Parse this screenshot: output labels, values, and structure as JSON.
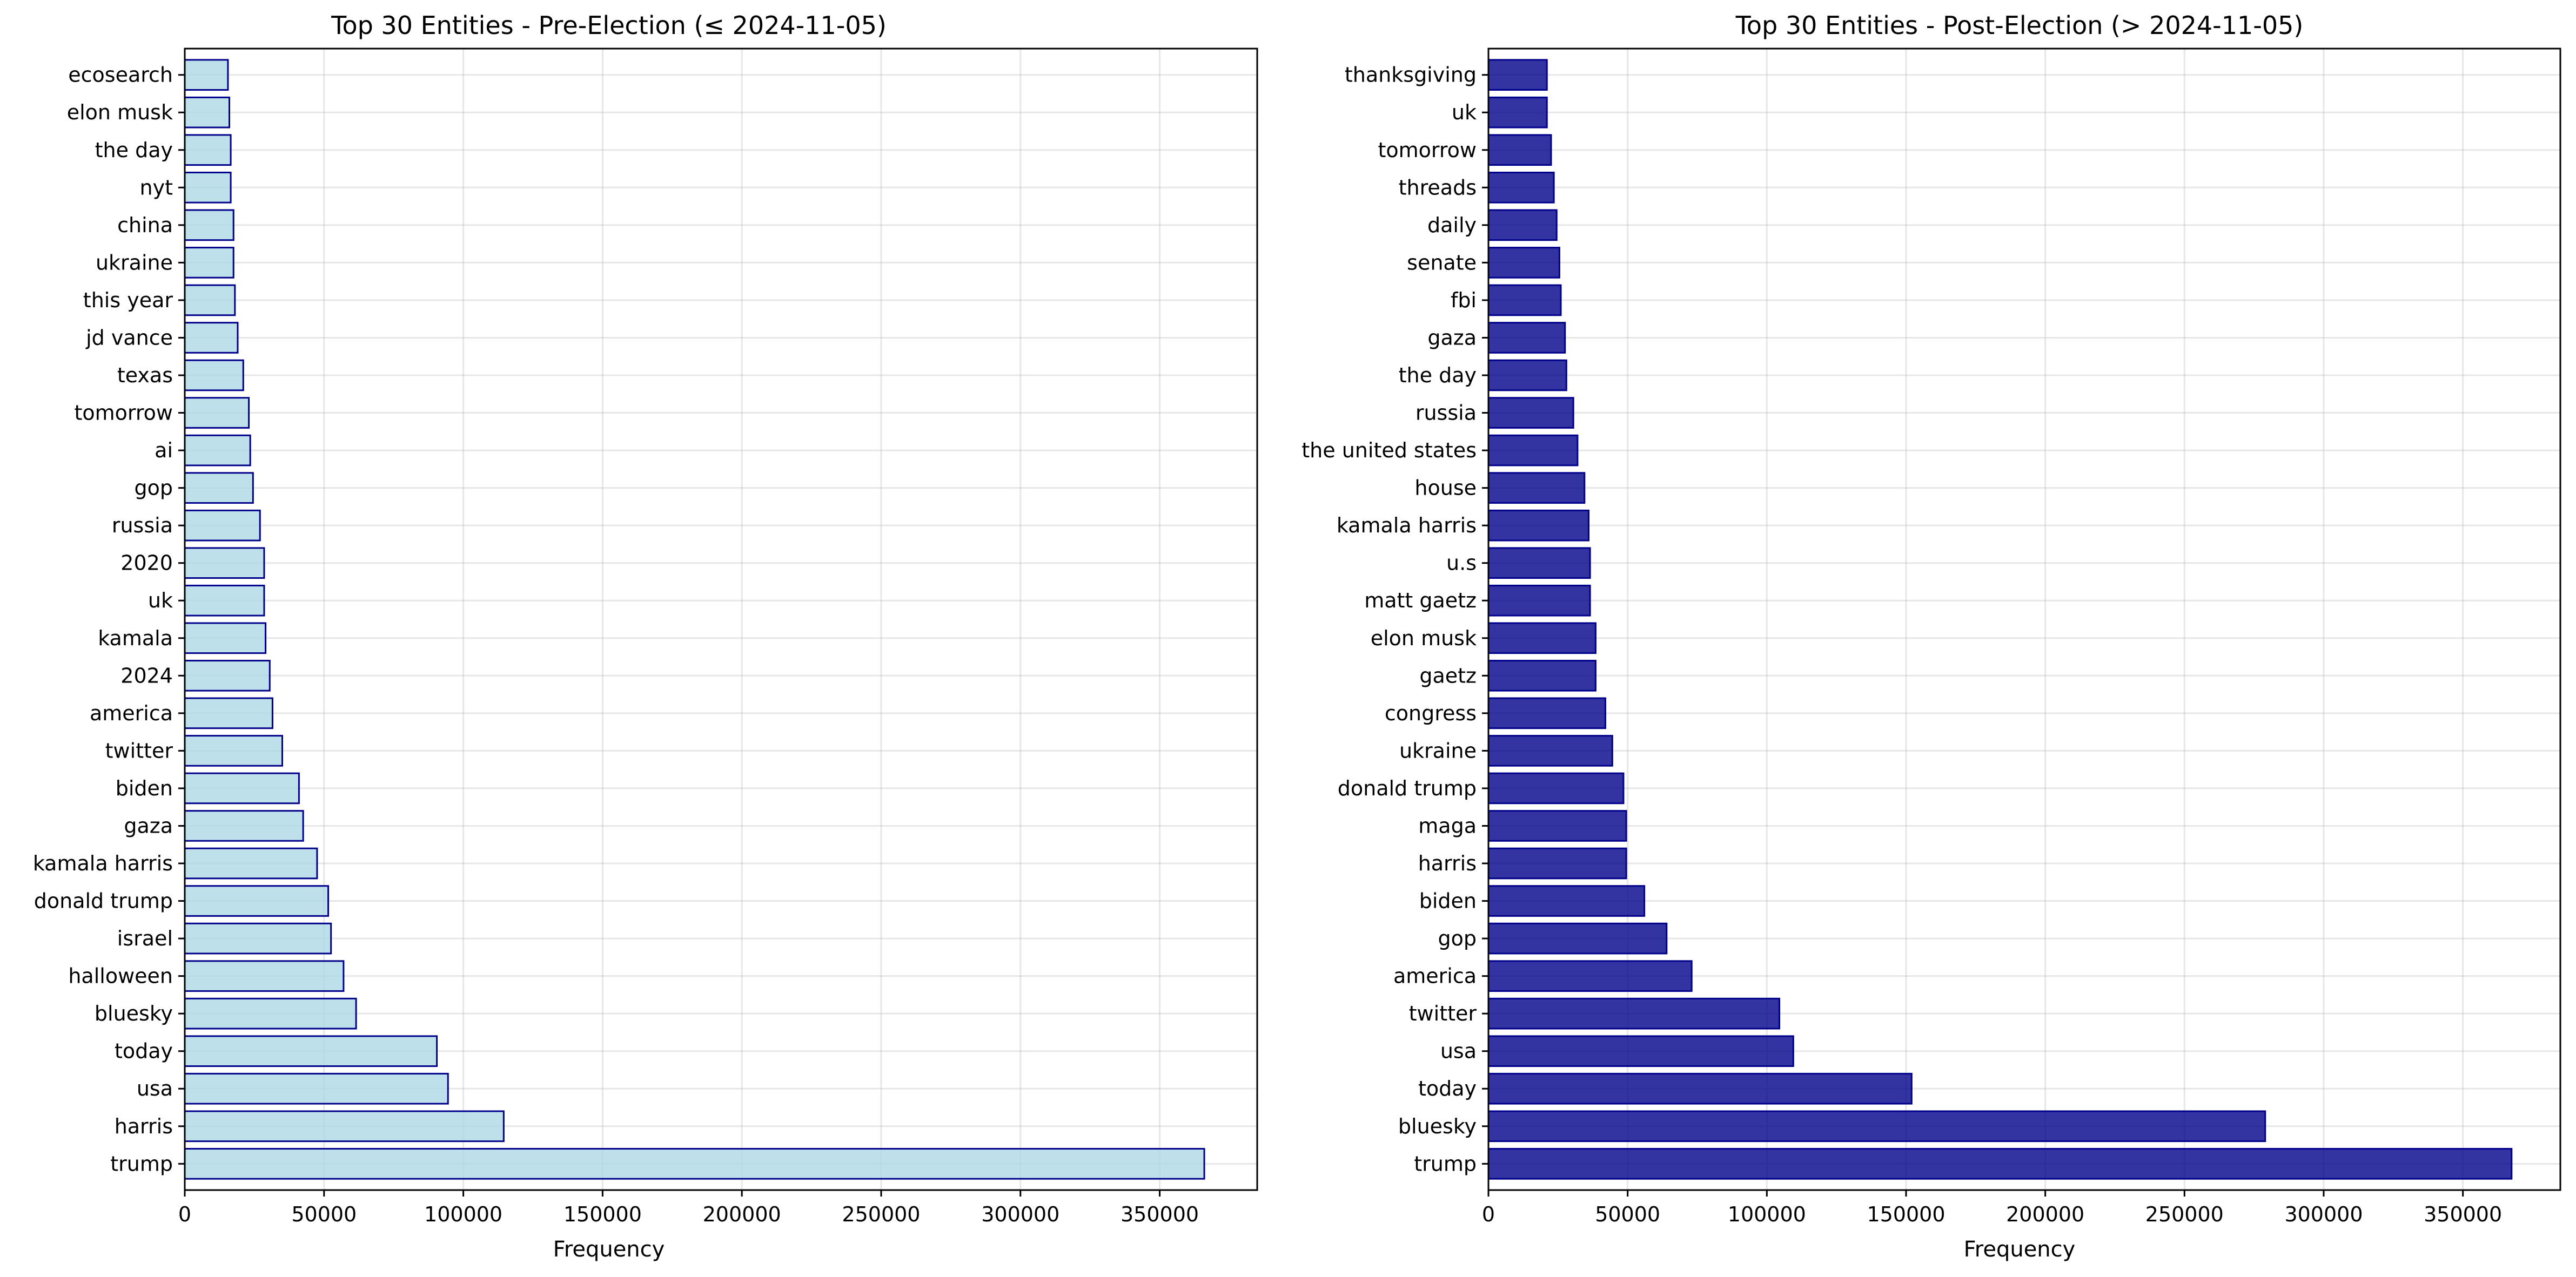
{
  "chart_data": [
    {
      "type": "bar",
      "orientation": "horizontal",
      "title": "Top 30 Entities - Pre-Election (≤ 2024-11-05)",
      "xlabel": "Frequency",
      "ylabel": "",
      "xlim": [
        0,
        385000
      ],
      "xticks": [
        0,
        50000,
        100000,
        150000,
        200000,
        250000,
        300000,
        350000
      ],
      "xtick_labels": [
        "0",
        "50000",
        "100000",
        "150000",
        "200000",
        "250000",
        "300000",
        "350000"
      ],
      "grid": true,
      "bar_color": "#add8e6",
      "edge_color": "#00008b",
      "categories": [
        "trump",
        "harris",
        "usa",
        "today",
        "bluesky",
        "halloween",
        "israel",
        "donald trump",
        "kamala harris",
        "gaza",
        "biden",
        "twitter",
        "america",
        "2024",
        "kamala",
        "uk",
        "2020",
        "russia",
        "gop",
        "ai",
        "tomorrow",
        "texas",
        "jd vance",
        "this year",
        "ukraine",
        "china",
        "nyt",
        "the day",
        "elon musk",
        "ecosearch"
      ],
      "values": [
        366000,
        114500,
        94500,
        90500,
        61500,
        57000,
        52500,
        51500,
        47500,
        42500,
        41000,
        35000,
        31500,
        30500,
        29000,
        28500,
        28500,
        27000,
        24500,
        23500,
        23000,
        21000,
        19000,
        18000,
        17500,
        17500,
        16500,
        16500,
        16000,
        15500
      ]
    },
    {
      "type": "bar",
      "orientation": "horizontal",
      "title": "Top 30 Entities - Post-Election (> 2024-11-05)",
      "xlabel": "Frequency",
      "ylabel": "",
      "xlim": [
        0,
        385000
      ],
      "xticks": [
        0,
        50000,
        100000,
        150000,
        200000,
        250000,
        300000,
        350000
      ],
      "xtick_labels": [
        "0",
        "50000",
        "100000",
        "150000",
        "200000",
        "250000",
        "300000",
        "350000"
      ],
      "grid": true,
      "bar_color": "#00008b",
      "edge_color": "#00008b",
      "categories": [
        "trump",
        "bluesky",
        "today",
        "usa",
        "twitter",
        "america",
        "gop",
        "biden",
        "harris",
        "maga",
        "donald trump",
        "ukraine",
        "congress",
        "gaetz",
        "elon musk",
        "matt gaetz",
        "u.s",
        "kamala harris",
        "house",
        "the united states",
        "russia",
        "the day",
        "gaza",
        "fbi",
        "senate",
        "daily",
        "threads",
        "tomorrow",
        "uk",
        "thanksgiving"
      ],
      "values": [
        367500,
        279000,
        152000,
        109500,
        104500,
        73000,
        64000,
        56000,
        49500,
        49500,
        48500,
        44500,
        42000,
        38500,
        38500,
        36500,
        36500,
        36000,
        34500,
        32000,
        30500,
        28000,
        27500,
        26000,
        25500,
        24500,
        23500,
        22500,
        21000,
        21000
      ]
    }
  ]
}
